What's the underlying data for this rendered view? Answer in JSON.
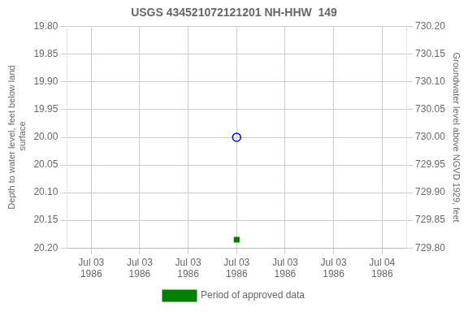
{
  "chart_data": {
    "type": "scatter",
    "title": "USGS 434521072121201 NH-HHW  149",
    "ylabel": "Depth to water level, feet below land\n surface",
    "y2label": "Groundwater level above NGVD 1929, feet",
    "categories": [
      "Jul 03\n1986",
      "Jul 03\n1986",
      "Jul 03\n1986",
      "Jul 03\n1986",
      "Jul 03\n1986",
      "Jul 03\n1986",
      "Jul 04\n1986"
    ],
    "series": [
      {
        "color": "blue",
        "marker": "open circle",
        "values": [
          null,
          null,
          null,
          20.0,
          null,
          null,
          null
        ]
      },
      {
        "name": "Period of approved data",
        "color": "green",
        "marker": "square",
        "values": [
          null,
          null,
          null,
          20.185,
          null,
          null,
          null
        ]
      }
    ],
    "ylim": [
      20.2,
      19.8
    ],
    "yticks": [
      {
        "value": 19.8,
        "label": "19.80"
      },
      {
        "value": 19.85,
        "label": "19.85"
      },
      {
        "value": 19.9,
        "label": "19.90"
      },
      {
        "value": 19.95,
        "label": "19.95"
      },
      {
        "value": 20.0,
        "label": "20.00"
      },
      {
        "value": 20.05,
        "label": "20.05"
      },
      {
        "value": 20.1,
        "label": "20.10"
      },
      {
        "value": 20.15,
        "label": "20.15"
      },
      {
        "value": 20.2,
        "label": "20.20"
      }
    ],
    "y2lim": [
      729.8,
      730.2
    ],
    "y2ticks": [
      {
        "value": 730.2,
        "label": "730.20"
      },
      {
        "value": 730.15,
        "label": "730.15"
      },
      {
        "value": 730.1,
        "label": "730.10"
      },
      {
        "value": 730.05,
        "label": "730.05"
      },
      {
        "value": 730.0,
        "label": "730.00"
      },
      {
        "value": 729.95,
        "label": "729.95"
      },
      {
        "value": 729.9,
        "label": "729.90"
      },
      {
        "value": 729.85,
        "label": "729.85"
      },
      {
        "value": 729.8,
        "label": "729.80"
      }
    ],
    "grid": "#cccccc",
    "legend": "bottom"
  }
}
